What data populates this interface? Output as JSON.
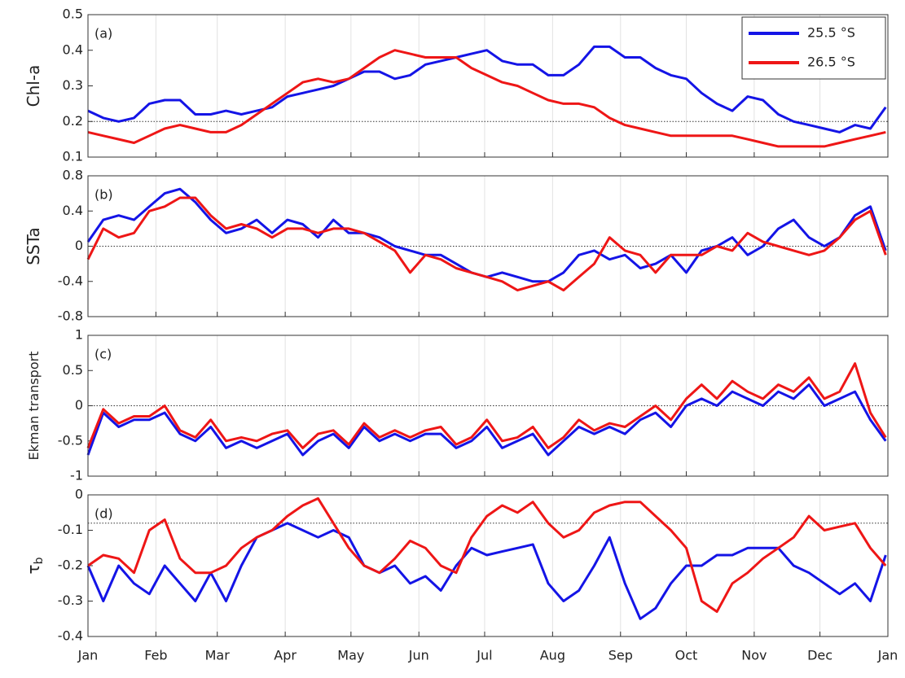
{
  "chart_data": [
    {
      "type": "line",
      "label": "(a)",
      "ylabel": "Chl-a",
      "ylim": [
        0.1,
        0.5
      ],
      "yticks": [
        0.1,
        0.2,
        0.3,
        0.4,
        0.5
      ],
      "xlim": [
        0,
        365
      ],
      "reference_line": 0.2,
      "legend": "top-right",
      "x": [
        0,
        7,
        14,
        21,
        28,
        35,
        42,
        49,
        56,
        63,
        70,
        77,
        84,
        91,
        98,
        105,
        112,
        119,
        126,
        133,
        140,
        147,
        154,
        161,
        168,
        175,
        182,
        189,
        196,
        203,
        210,
        217,
        224,
        231,
        238,
        245,
        252,
        259,
        266,
        273,
        280,
        287,
        294,
        301,
        308,
        315,
        322,
        329,
        336,
        343,
        350,
        357,
        364
      ],
      "series": [
        {
          "name": "25.5 °S",
          "color": "#1414e6",
          "values": [
            0.23,
            0.21,
            0.2,
            0.21,
            0.25,
            0.26,
            0.26,
            0.22,
            0.22,
            0.23,
            0.22,
            0.23,
            0.24,
            0.27,
            0.28,
            0.29,
            0.3,
            0.32,
            0.34,
            0.34,
            0.32,
            0.33,
            0.36,
            0.37,
            0.38,
            0.39,
            0.4,
            0.37,
            0.36,
            0.36,
            0.33,
            0.33,
            0.36,
            0.41,
            0.41,
            0.38,
            0.38,
            0.35,
            0.33,
            0.32,
            0.28,
            0.25,
            0.23,
            0.27,
            0.26,
            0.22,
            0.2,
            0.19,
            0.18,
            0.17,
            0.19,
            0.18,
            0.24
          ]
        },
        {
          "name": "26.5 °S",
          "color": "#ee1616",
          "values": [
            0.17,
            0.16,
            0.15,
            0.14,
            0.16,
            0.18,
            0.19,
            0.18,
            0.17,
            0.17,
            0.19,
            0.22,
            0.25,
            0.28,
            0.31,
            0.32,
            0.31,
            0.32,
            0.35,
            0.38,
            0.4,
            0.39,
            0.38,
            0.38,
            0.38,
            0.35,
            0.33,
            0.31,
            0.3,
            0.28,
            0.26,
            0.25,
            0.25,
            0.24,
            0.21,
            0.19,
            0.18,
            0.17,
            0.16,
            0.16,
            0.16,
            0.16,
            0.16,
            0.15,
            0.14,
            0.13,
            0.13,
            0.13,
            0.13,
            0.14,
            0.15,
            0.16,
            0.17
          ]
        }
      ]
    },
    {
      "type": "line",
      "label": "(b)",
      "ylabel": "SSTa",
      "ylim": [
        -0.8,
        0.8
      ],
      "yticks": [
        -0.8,
        -0.4,
        0,
        0.4,
        0.8
      ],
      "xlim": [
        0,
        365
      ],
      "reference_line": 0,
      "x": [
        0,
        7,
        14,
        21,
        28,
        35,
        42,
        49,
        56,
        63,
        70,
        77,
        84,
        91,
        98,
        105,
        112,
        119,
        126,
        133,
        140,
        147,
        154,
        161,
        168,
        175,
        182,
        189,
        196,
        203,
        210,
        217,
        224,
        231,
        238,
        245,
        252,
        259,
        266,
        273,
        280,
        287,
        294,
        301,
        308,
        315,
        322,
        329,
        336,
        343,
        350,
        357,
        364
      ],
      "series": [
        {
          "name": "25.5 °S",
          "color": "#1414e6",
          "values": [
            0.05,
            0.3,
            0.35,
            0.3,
            0.45,
            0.6,
            0.65,
            0.5,
            0.3,
            0.15,
            0.2,
            0.3,
            0.15,
            0.3,
            0.25,
            0.1,
            0.3,
            0.15,
            0.15,
            0.1,
            0.0,
            -0.05,
            -0.1,
            -0.1,
            -0.2,
            -0.3,
            -0.35,
            -0.3,
            -0.35,
            -0.4,
            -0.4,
            -0.3,
            -0.1,
            -0.05,
            -0.15,
            -0.1,
            -0.25,
            -0.2,
            -0.1,
            -0.3,
            -0.05,
            0.0,
            0.1,
            -0.1,
            0.0,
            0.2,
            0.3,
            0.1,
            0.0,
            0.1,
            0.35,
            0.45,
            -0.05
          ]
        },
        {
          "name": "26.5 °S",
          "color": "#ee1616",
          "values": [
            -0.15,
            0.2,
            0.1,
            0.15,
            0.4,
            0.45,
            0.55,
            0.55,
            0.35,
            0.2,
            0.25,
            0.2,
            0.1,
            0.2,
            0.2,
            0.15,
            0.2,
            0.2,
            0.15,
            0.05,
            -0.05,
            -0.3,
            -0.1,
            -0.15,
            -0.25,
            -0.3,
            -0.35,
            -0.4,
            -0.5,
            -0.45,
            -0.4,
            -0.5,
            -0.35,
            -0.2,
            0.1,
            -0.05,
            -0.1,
            -0.3,
            -0.1,
            -0.1,
            -0.1,
            0.0,
            -0.05,
            0.15,
            0.05,
            0.0,
            -0.05,
            -0.1,
            -0.05,
            0.1,
            0.3,
            0.4,
            -0.1
          ]
        }
      ]
    },
    {
      "type": "line",
      "label": "(c)",
      "ylabel": "Ekman transport",
      "ylim": [
        -1,
        1
      ],
      "yticks": [
        -1,
        -0.5,
        0,
        0.5,
        1
      ],
      "xlim": [
        0,
        365
      ],
      "reference_line": 0,
      "x": [
        0,
        7,
        14,
        21,
        28,
        35,
        42,
        49,
        56,
        63,
        70,
        77,
        84,
        91,
        98,
        105,
        112,
        119,
        126,
        133,
        140,
        147,
        154,
        161,
        168,
        175,
        182,
        189,
        196,
        203,
        210,
        217,
        224,
        231,
        238,
        245,
        252,
        259,
        266,
        273,
        280,
        287,
        294,
        301,
        308,
        315,
        322,
        329,
        336,
        343,
        350,
        357,
        364
      ],
      "series": [
        {
          "name": "25.5 °S",
          "color": "#1414e6",
          "values": [
            -0.7,
            -0.1,
            -0.3,
            -0.2,
            -0.2,
            -0.1,
            -0.4,
            -0.5,
            -0.3,
            -0.6,
            -0.5,
            -0.6,
            -0.5,
            -0.4,
            -0.7,
            -0.5,
            -0.4,
            -0.6,
            -0.3,
            -0.5,
            -0.4,
            -0.5,
            -0.4,
            -0.4,
            -0.6,
            -0.5,
            -0.3,
            -0.6,
            -0.5,
            -0.4,
            -0.7,
            -0.5,
            -0.3,
            -0.4,
            -0.3,
            -0.4,
            -0.2,
            -0.1,
            -0.3,
            0.0,
            0.1,
            0.0,
            0.2,
            0.1,
            0.0,
            0.2,
            0.1,
            0.3,
            0.0,
            0.1,
            0.2,
            -0.2,
            -0.5
          ]
        },
        {
          "name": "26.5 °S",
          "color": "#ee1616",
          "values": [
            -0.6,
            -0.05,
            -0.25,
            -0.15,
            -0.15,
            0.0,
            -0.35,
            -0.45,
            -0.2,
            -0.5,
            -0.45,
            -0.5,
            -0.4,
            -0.35,
            -0.6,
            -0.4,
            -0.35,
            -0.55,
            -0.25,
            -0.45,
            -0.35,
            -0.45,
            -0.35,
            -0.3,
            -0.55,
            -0.45,
            -0.2,
            -0.5,
            -0.45,
            -0.3,
            -0.6,
            -0.45,
            -0.2,
            -0.35,
            -0.25,
            -0.3,
            -0.15,
            0.0,
            -0.2,
            0.1,
            0.3,
            0.1,
            0.35,
            0.2,
            0.1,
            0.3,
            0.2,
            0.4,
            0.1,
            0.2,
            0.6,
            -0.1,
            -0.45
          ]
        }
      ]
    },
    {
      "type": "line",
      "label": "(d)",
      "ylabel": "τ",
      "ylabel_subscript": "b",
      "ylim": [
        -0.4,
        0
      ],
      "yticks": [
        -0.4,
        -0.3,
        -0.2,
        -0.1,
        0
      ],
      "xlim": [
        0,
        365
      ],
      "reference_line": -0.08,
      "xticks": [
        {
          "value": 0,
          "label": "Jan"
        },
        {
          "value": 31,
          "label": "Feb"
        },
        {
          "value": 59,
          "label": "Mar"
        },
        {
          "value": 90,
          "label": "Apr"
        },
        {
          "value": 120,
          "label": "May"
        },
        {
          "value": 151,
          "label": "Jun"
        },
        {
          "value": 181,
          "label": "Jul"
        },
        {
          "value": 212,
          "label": "Aug"
        },
        {
          "value": 243,
          "label": "Sep"
        },
        {
          "value": 273,
          "label": "Oct"
        },
        {
          "value": 304,
          "label": "Nov"
        },
        {
          "value": 334,
          "label": "Dec"
        },
        {
          "value": 365,
          "label": "Jan"
        }
      ],
      "x": [
        0,
        7,
        14,
        21,
        28,
        35,
        42,
        49,
        56,
        63,
        70,
        77,
        84,
        91,
        98,
        105,
        112,
        119,
        126,
        133,
        140,
        147,
        154,
        161,
        168,
        175,
        182,
        189,
        196,
        203,
        210,
        217,
        224,
        231,
        238,
        245,
        252,
        259,
        266,
        273,
        280,
        287,
        294,
        301,
        308,
        315,
        322,
        329,
        336,
        343,
        350,
        357,
        364
      ],
      "series": [
        {
          "name": "25.5 °S",
          "color": "#1414e6",
          "values": [
            -0.2,
            -0.3,
            -0.2,
            -0.25,
            -0.28,
            -0.2,
            -0.25,
            -0.3,
            -0.22,
            -0.3,
            -0.2,
            -0.12,
            -0.1,
            -0.08,
            -0.1,
            -0.12,
            -0.1,
            -0.12,
            -0.2,
            -0.22,
            -0.2,
            -0.25,
            -0.23,
            -0.27,
            -0.2,
            -0.15,
            -0.17,
            -0.16,
            -0.15,
            -0.14,
            -0.25,
            -0.3,
            -0.27,
            -0.2,
            -0.12,
            -0.25,
            -0.35,
            -0.32,
            -0.25,
            -0.2,
            -0.2,
            -0.17,
            -0.17,
            -0.15,
            -0.15,
            -0.15,
            -0.2,
            -0.22,
            -0.25,
            -0.28,
            -0.25,
            -0.3,
            -0.17
          ]
        },
        {
          "name": "26.5 °S",
          "color": "#ee1616",
          "values": [
            -0.2,
            -0.17,
            -0.18,
            -0.22,
            -0.1,
            -0.07,
            -0.18,
            -0.22,
            -0.22,
            -0.2,
            -0.15,
            -0.12,
            -0.1,
            -0.06,
            -0.03,
            -0.01,
            -0.08,
            -0.15,
            -0.2,
            -0.22,
            -0.18,
            -0.13,
            -0.15,
            -0.2,
            -0.22,
            -0.12,
            -0.06,
            -0.03,
            -0.05,
            -0.02,
            -0.08,
            -0.12,
            -0.1,
            -0.05,
            -0.03,
            -0.02,
            -0.02,
            -0.06,
            -0.1,
            -0.15,
            -0.3,
            -0.33,
            -0.25,
            -0.22,
            -0.18,
            -0.15,
            -0.12,
            -0.06,
            -0.1,
            -0.09,
            -0.08,
            -0.15,
            -0.2
          ]
        }
      ]
    }
  ]
}
